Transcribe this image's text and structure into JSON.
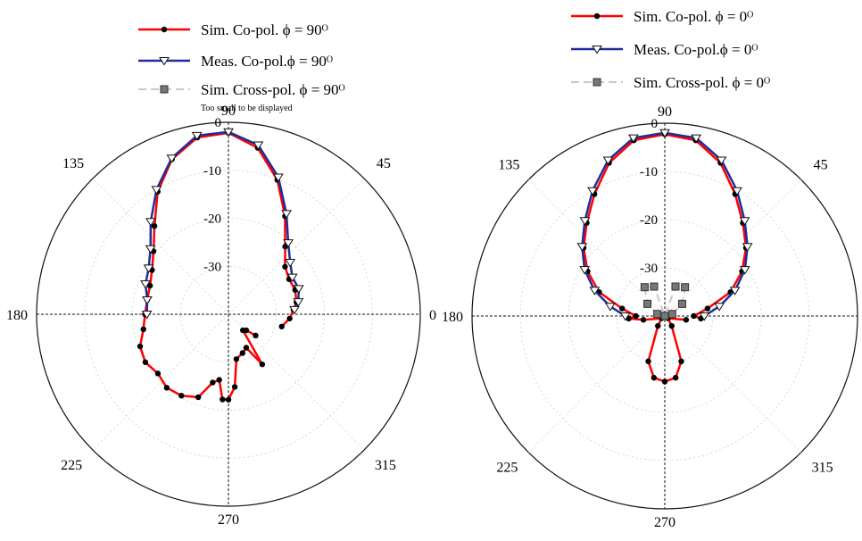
{
  "colors": {
    "sim": "#ff0000",
    "meas": "#1f2d9a",
    "cross": "#c8c8c8",
    "marker_dark": "#000000",
    "cross_marker": "#777777"
  },
  "chart_data": [
    {
      "type": "polar-line",
      "units": "dB",
      "r_ticks": [
        0,
        -10,
        -20,
        -30
      ],
      "r_range": [
        -40,
        0
      ],
      "r_tick_labels": [
        "0",
        "-10",
        "-20",
        "-30"
      ],
      "angle_labels": [
        {
          "angle": 0,
          "text": "0"
        },
        {
          "angle": 45,
          "text": "45"
        },
        {
          "angle": 90,
          "text": "90"
        },
        {
          "angle": 135,
          "text": "135"
        },
        {
          "angle": 180,
          "text": "180"
        },
        {
          "angle": 225,
          "text": "225"
        },
        {
          "angle": 270,
          "text": "270"
        },
        {
          "angle": 315,
          "text": "315"
        }
      ],
      "note": "Too small to be displayed",
      "series": [
        {
          "name": "Sim. Co-pol. ϕ = 90ᴼ",
          "style": "sim",
          "points": [
            [
              -13,
              -28.6
            ],
            [
              -4,
              -27.2
            ],
            [
              4,
              -26.4
            ],
            [
              10,
              -25.6
            ],
            [
              20,
              -25.2
            ],
            [
              30,
              -25.4
            ],
            [
              40,
              -24.6
            ],
            [
              50,
              -21.6
            ],
            [
              60,
              -16.4
            ],
            [
              70,
              -10.2
            ],
            [
              80,
              -4.8
            ],
            [
              90,
              -2.2
            ],
            [
              100,
              -2.6
            ],
            [
              110,
              -5.6
            ],
            [
              120,
              -10.5
            ],
            [
              130,
              -16.0
            ],
            [
              140,
              -19.6
            ],
            [
              150,
              -21.6
            ],
            [
              160,
              -22.6
            ],
            [
              170,
              -22.8
            ],
            [
              180,
              -22.6
            ],
            [
              190,
              -22.0
            ],
            [
              200,
              -20.4
            ],
            [
              210,
              -20.0
            ],
            [
              220,
              -20.8
            ],
            [
              230,
              -20.0
            ],
            [
              240,
              -20.4
            ],
            [
              250,
              -21.6
            ],
            [
              257,
              -25.4
            ],
            [
              262,
              -26.2
            ],
            [
              266,
              -22.2
            ],
            [
              270,
              -22.2
            ],
            [
              275,
              -24.8
            ],
            [
              280,
              -30.5
            ],
            [
              290,
              -31.4
            ],
            [
              298,
              -32.1
            ],
            [
              304,
              -27.4
            ],
            [
              312,
              -35.5
            ],
            [
              318,
              -35.0
            ],
            [
              322,
              -32.8
            ]
          ]
        },
        {
          "name": "Meas. Co-pol.ϕ = 90ᴼ",
          "style": "meas",
          "points": [
            [
              4,
              -26.2
            ],
            [
              10,
              -25.2
            ],
            [
              20,
              -24.4
            ],
            [
              30,
              -24.6
            ],
            [
              40,
              -23.2
            ],
            [
              50,
              -20.6
            ],
            [
              60,
              -15.8
            ],
            [
              70,
              -9.6
            ],
            [
              80,
              -4.2
            ],
            [
              90,
              -2.0
            ],
            [
              100,
              -2.2
            ],
            [
              110,
              -5.4
            ],
            [
              120,
              -10.0
            ],
            [
              130,
              -14.8
            ],
            [
              140,
              -18.8
            ],
            [
              150,
              -20.8
            ],
            [
              160,
              -21.6
            ],
            [
              170,
              -22.8
            ],
            [
              180,
              -23.0
            ]
          ]
        },
        {
          "name": "Sim. Cross-pol. ϕ = 90ᴼ",
          "style": "cross",
          "points": []
        }
      ]
    },
    {
      "type": "polar-line",
      "units": "dB",
      "r_ticks": [
        0,
        -10,
        -20,
        -30
      ],
      "r_range": [
        -40,
        0
      ],
      "r_tick_labels": [
        "0",
        "-10",
        "-20",
        "-30"
      ],
      "angle_labels": [
        {
          "angle": 45,
          "text": "45"
        },
        {
          "angle": 90,
          "text": "90"
        },
        {
          "angle": 135,
          "text": "135"
        },
        {
          "angle": 180,
          "text": "180"
        },
        {
          "angle": 225,
          "text": "225"
        },
        {
          "angle": 270,
          "text": "270"
        },
        {
          "angle": 315,
          "text": "315"
        }
      ],
      "series": [
        {
          "name": "Sim. Co-pol. ϕ = 0ᴼ",
          "style": "sim",
          "points": [
            [
              -4,
              -32.5
            ],
            [
              0,
              -34.0
            ],
            [
              10,
              -31.0
            ],
            [
              20,
              -25.5
            ],
            [
              30,
              -21.5
            ],
            [
              40,
              -18.0
            ],
            [
              50,
              -14.8
            ],
            [
              60,
              -10.8
            ],
            [
              70,
              -6.2
            ],
            [
              80,
              -3.0
            ],
            [
              90,
              -2.3
            ],
            [
              100,
              -3.0
            ],
            [
              110,
              -6.2
            ],
            [
              120,
              -10.8
            ],
            [
              130,
              -14.8
            ],
            [
              140,
              -18.0
            ],
            [
              150,
              -21.5
            ],
            [
              160,
              -25.5
            ],
            [
              170,
              -31.0
            ],
            [
              180,
              -34.0
            ],
            [
              184,
              -32.5
            ],
            [
              190,
              -35.5
            ],
            [
              215,
              -39.2
            ],
            [
              235,
              -37.5
            ],
            [
              250,
              -30.0
            ],
            [
              260,
              -27.0
            ],
            [
              270,
              -26.4
            ],
            [
              280,
              -27.0
            ],
            [
              290,
              -30.0
            ],
            [
              305,
              -37.5
            ],
            [
              325,
              -39.2
            ],
            [
              350,
              -35.5
            ]
          ]
        },
        {
          "name": "Meas. Co-pol.ϕ = 0ᴼ",
          "style": "meas",
          "points": [
            [
              0,
              -31.8
            ],
            [
              10,
              -28.5
            ],
            [
              20,
              -24.5
            ],
            [
              30,
              -20.8
            ],
            [
              40,
              -17.6
            ],
            [
              50,
              -14.2
            ],
            [
              60,
              -10.0
            ],
            [
              70,
              -5.6
            ],
            [
              80,
              -2.5
            ],
            [
              90,
              -2.0
            ],
            [
              100,
              -2.5
            ],
            [
              110,
              -5.6
            ],
            [
              120,
              -10.0
            ],
            [
              130,
              -14.2
            ],
            [
              140,
              -17.6
            ],
            [
              150,
              -20.8
            ],
            [
              160,
              -24.5
            ],
            [
              170,
              -28.5
            ],
            [
              180,
              -31.8
            ]
          ]
        },
        {
          "name": "Sim. Cross-pol. ϕ = 0ᴼ",
          "style": "cross",
          "points": [
            [
              15,
              -38.4
            ],
            [
              35,
              -35.6
            ],
            [
              55,
              -32.7
            ],
            [
              70,
              -33.5
            ],
            [
              90,
              -40.0
            ],
            [
              110,
              -33.5
            ],
            [
              125,
              -32.7
            ],
            [
              145,
              -35.6
            ],
            [
              165,
              -38.4
            ]
          ]
        }
      ]
    }
  ]
}
